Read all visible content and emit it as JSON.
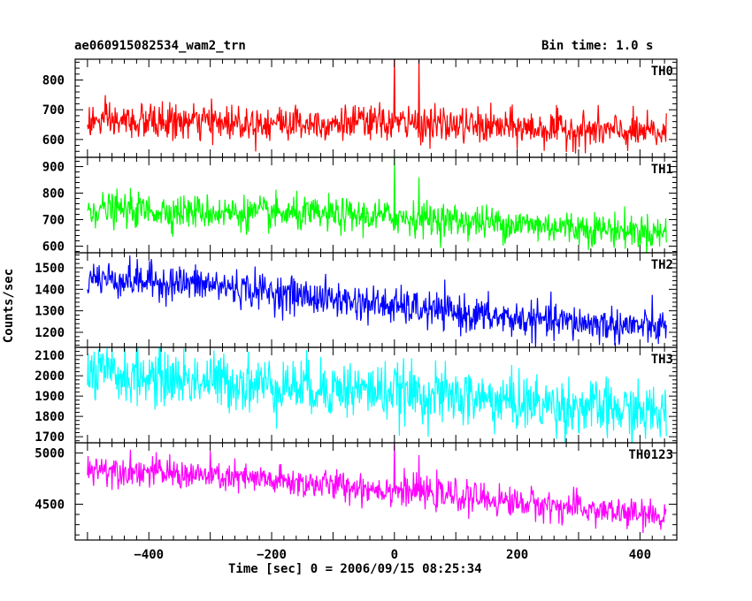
{
  "header": {
    "title": "ae060915082534_wam2_trn",
    "bin_time": "Bin time: 1.0 s"
  },
  "chart_data": {
    "type": "line",
    "xlabel": "Time [sec] 0 = 2006/09/15 08:25:34",
    "ylabel": "Counts/sec",
    "xlim": [
      -520,
      460
    ],
    "x_ticks": [
      -400,
      -200,
      0,
      200,
      400
    ],
    "x_tick_labels": [
      "−400",
      "−200",
      "0",
      "200",
      "400"
    ],
    "x_start": -500,
    "x_end": 443,
    "x_step": 1,
    "panels": [
      {
        "name": "TH0",
        "color": "#ff0000",
        "ylim": [
          540,
          870
        ],
        "yticks": [
          600,
          700,
          800
        ],
        "trend": [
          [
            -500,
            660
          ],
          [
            0,
            655
          ],
          [
            443,
            620
          ]
        ],
        "noise_sd": 30,
        "spikes": [
          [
            0,
            880
          ],
          [
            40,
            880
          ]
        ]
      },
      {
        "name": "TH1",
        "color": "#00ff00",
        "ylim": [
          575,
          935
        ],
        "yticks": [
          600,
          700,
          800,
          900
        ],
        "trend": [
          [
            -500,
            740
          ],
          [
            0,
            710
          ],
          [
            443,
            650
          ]
        ],
        "noise_sd": 32,
        "spikes": [
          [
            0,
            935
          ],
          [
            40,
            860
          ]
        ]
      },
      {
        "name": "TH2",
        "color": "#0000ff",
        "ylim": [
          1130,
          1570
        ],
        "yticks": [
          1200,
          1300,
          1400,
          1500
        ],
        "trend": [
          [
            -500,
            1455
          ],
          [
            -300,
            1420
          ],
          [
            0,
            1320
          ],
          [
            200,
            1260
          ],
          [
            443,
            1220
          ]
        ],
        "noise_sd": 42
      },
      {
        "name": "TH3",
        "color": "#00ffff",
        "ylim": [
          1670,
          2140
        ],
        "yticks": [
          1700,
          1800,
          1900,
          2000,
          2100
        ],
        "trend": [
          [
            -500,
            2010
          ],
          [
            0,
            1920
          ],
          [
            443,
            1810
          ]
        ],
        "noise_sd": 70
      },
      {
        "name": "TH0123",
        "color": "#ff00ff",
        "ylim": [
          4150,
          5100
        ],
        "yticks": [
          4500,
          5000
        ],
        "trend": [
          [
            -500,
            4860
          ],
          [
            0,
            4640
          ],
          [
            443,
            4370
          ]
        ],
        "noise_sd": 75,
        "spikes": [
          [
            0,
            5100
          ],
          [
            40,
            4980
          ]
        ]
      }
    ],
    "grid": false
  }
}
